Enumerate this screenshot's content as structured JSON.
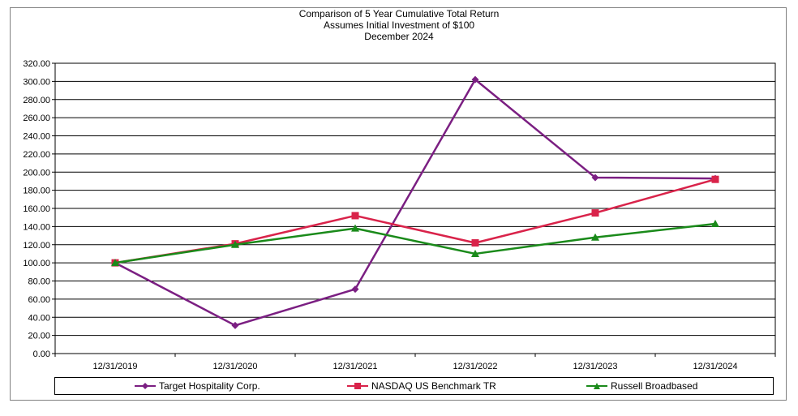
{
  "chart_data": {
    "type": "line",
    "title": "Comparison of 5 Year Cumulative Total Return",
    "subtitle_lines": [
      "Assumes Initial Investment of $100",
      "December 2024"
    ],
    "categories": [
      "12/31/2019",
      "12/31/2020",
      "12/31/2021",
      "12/31/2022",
      "12/31/2023",
      "12/31/2024"
    ],
    "ylim": [
      0,
      320
    ],
    "ytick_step": 20,
    "ytick_labels": [
      "0.00",
      "20.00",
      "40.00",
      "60.00",
      "80.00",
      "100.00",
      "120.00",
      "140.00",
      "160.00",
      "180.00",
      "200.00",
      "220.00",
      "240.00",
      "260.00",
      "280.00",
      "300.00",
      "320.00"
    ],
    "grid": "horizontal",
    "legend_position": "bottom",
    "series": [
      {
        "name": "Target Hospitality Corp.",
        "color": "#7B1F82",
        "marker": "diamond",
        "values": [
          100,
          31,
          71,
          302,
          194,
          193
        ]
      },
      {
        "name": "NASDAQ US Benchmark TR",
        "color": "#D9234A",
        "marker": "square",
        "values": [
          100,
          121,
          152,
          122,
          155,
          192
        ]
      },
      {
        "name": "Russell Broadbased",
        "color": "#1A8A1A",
        "marker": "triangle",
        "values": [
          100,
          120,
          138,
          110,
          128,
          143
        ]
      }
    ]
  }
}
